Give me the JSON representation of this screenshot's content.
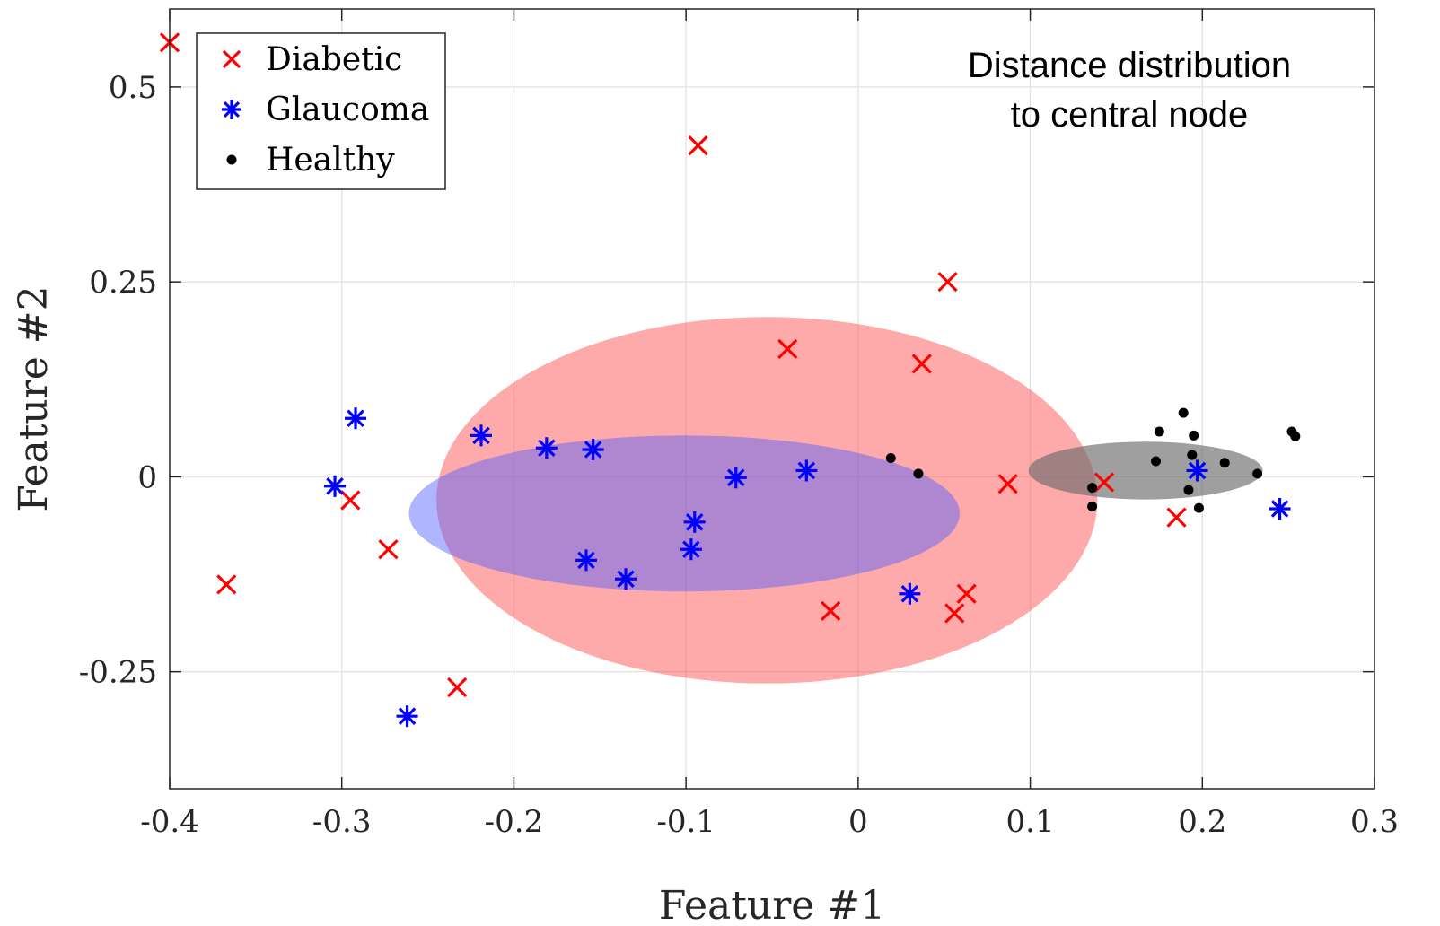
{
  "chart_data": {
    "type": "scatter",
    "xlabel": "Feature #1",
    "ylabel": "Feature #2",
    "xlim": [
      -0.4,
      0.3
    ],
    "ylim": [
      -0.4,
      0.6
    ],
    "x_ticks": [
      -0.4,
      -0.3,
      -0.2,
      -0.1,
      0,
      0.1,
      0.2,
      0.3
    ],
    "x_tick_labels": [
      "-0.4",
      "-0.3",
      "-0.2",
      "-0.1",
      "0",
      "0.1",
      "0.2",
      "0.3"
    ],
    "y_ticks": [
      -0.25,
      0,
      0.25,
      0.5
    ],
    "y_tick_labels": [
      "-0.25",
      "0",
      "0.25",
      "0.5"
    ],
    "grid": true,
    "legend_position": "top-left",
    "annotation": [
      "Distance distribution",
      "to central node"
    ],
    "ellipses": [
      {
        "series": "Diabetic",
        "center": [
          -0.053,
          -0.03
        ],
        "rx": 0.192,
        "ry": 0.235,
        "color": "#ff4d4d",
        "opacity": 0.48
      },
      {
        "series": "Glaucoma",
        "center": [
          -0.101,
          -0.047
        ],
        "rx": 0.16,
        "ry": 0.1,
        "color": "#4d5cff",
        "opacity": 0.45
      },
      {
        "series": "Healthy",
        "center": [
          0.167,
          0.008
        ],
        "rx": 0.068,
        "ry": 0.037,
        "color": "#6b6b6b",
        "opacity": 0.65
      }
    ],
    "series": [
      {
        "name": "Diabetic",
        "marker": "x",
        "color": "#ff0000",
        "points": [
          [
            -0.4,
            0.557
          ],
          [
            -0.093,
            0.425
          ],
          [
            0.052,
            0.25
          ],
          [
            -0.041,
            0.164
          ],
          [
            0.037,
            0.145
          ],
          [
            -0.295,
            -0.03
          ],
          [
            -0.273,
            -0.093
          ],
          [
            -0.367,
            -0.138
          ],
          [
            -0.233,
            -0.27
          ],
          [
            0.087,
            -0.009
          ],
          [
            0.143,
            -0.007
          ],
          [
            0.185,
            -0.052
          ],
          [
            -0.016,
            -0.172
          ],
          [
            0.056,
            -0.175
          ],
          [
            0.063,
            -0.15
          ]
        ]
      },
      {
        "name": "Glaucoma",
        "marker": "asterisk",
        "color": "#0000ff",
        "points": [
          [
            -0.304,
            -0.012
          ],
          [
            -0.292,
            0.075
          ],
          [
            -0.262,
            -0.307
          ],
          [
            -0.219,
            0.053
          ],
          [
            -0.181,
            0.037
          ],
          [
            -0.154,
            0.035
          ],
          [
            -0.071,
            -0.001
          ],
          [
            -0.03,
            0.008
          ],
          [
            -0.095,
            -0.058
          ],
          [
            -0.097,
            -0.093
          ],
          [
            -0.158,
            -0.107
          ],
          [
            -0.135,
            -0.131
          ],
          [
            0.03,
            -0.15
          ],
          [
            0.197,
            0.008
          ],
          [
            0.245,
            -0.041
          ]
        ]
      },
      {
        "name": "Healthy",
        "marker": "dot",
        "color": "#000000",
        "points": [
          [
            0.019,
            0.024
          ],
          [
            0.035,
            0.004
          ],
          [
            0.136,
            -0.014
          ],
          [
            0.136,
            -0.038
          ],
          [
            0.173,
            0.02
          ],
          [
            0.175,
            0.058
          ],
          [
            0.189,
            0.082
          ],
          [
            0.194,
            0.028
          ],
          [
            0.195,
            0.053
          ],
          [
            0.198,
            -0.04
          ],
          [
            0.192,
            -0.017
          ],
          [
            0.213,
            0.018
          ],
          [
            0.232,
            0.004
          ],
          [
            0.252,
            0.058
          ],
          [
            0.254,
            0.052
          ]
        ]
      }
    ]
  }
}
